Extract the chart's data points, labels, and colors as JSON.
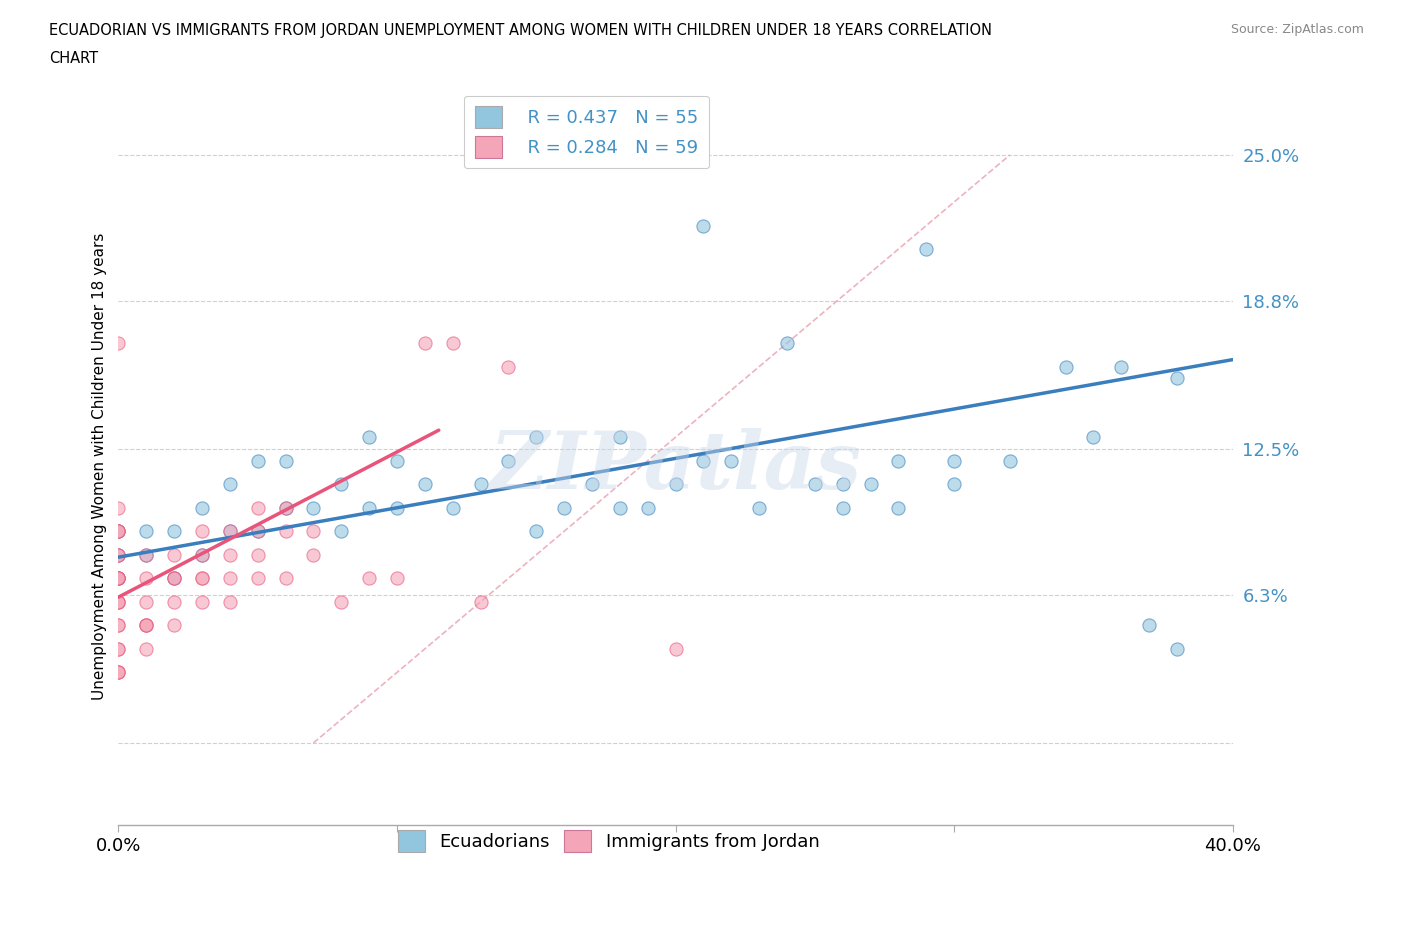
{
  "title_line1": "ECUADORIAN VS IMMIGRANTS FROM JORDAN UNEMPLOYMENT AMONG WOMEN WITH CHILDREN UNDER 18 YEARS CORRELATION",
  "title_line2": "CHART",
  "source": "Source: ZipAtlas.com",
  "ylabel": "Unemployment Among Women with Children Under 18 years",
  "xlim": [
    0.0,
    0.4
  ],
  "ylim": [
    -0.035,
    0.27
  ],
  "yticks": [
    0.0,
    0.063,
    0.125,
    0.188,
    0.25
  ],
  "ytick_labels": [
    "",
    "6.3%",
    "12.5%",
    "18.8%",
    "25.0%"
  ],
  "xticks": [
    0.0,
    0.1,
    0.2,
    0.3,
    0.4
  ],
  "xtick_labels": [
    "0.0%",
    "",
    "",
    "",
    "40.0%"
  ],
  "watermark": "ZIPatlas",
  "legend_r1": "R = 0.437   N = 55",
  "legend_r2": "R = 0.284   N = 59",
  "blue_color": "#92c5de",
  "pink_color": "#f4a6b8",
  "blue_line_color": "#3a7ebe",
  "pink_line_color": "#e8547a",
  "dash_line_color": "#e8a0b0",
  "ecuadorians_x": [
    0.0,
    0.0,
    0.0,
    0.01,
    0.01,
    0.02,
    0.02,
    0.03,
    0.03,
    0.04,
    0.04,
    0.05,
    0.05,
    0.06,
    0.06,
    0.07,
    0.08,
    0.08,
    0.09,
    0.09,
    0.1,
    0.1,
    0.11,
    0.12,
    0.13,
    0.14,
    0.15,
    0.15,
    0.16,
    0.17,
    0.18,
    0.18,
    0.19,
    0.2,
    0.21,
    0.22,
    0.23,
    0.24,
    0.25,
    0.26,
    0.27,
    0.28,
    0.29,
    0.3,
    0.32,
    0.34,
    0.35,
    0.36,
    0.37,
    0.38,
    0.38,
    0.28,
    0.21,
    0.3,
    0.26
  ],
  "ecuadorians_y": [
    0.07,
    0.08,
    0.09,
    0.08,
    0.09,
    0.07,
    0.09,
    0.08,
    0.1,
    0.09,
    0.11,
    0.09,
    0.12,
    0.1,
    0.12,
    0.1,
    0.09,
    0.11,
    0.1,
    0.13,
    0.1,
    0.12,
    0.11,
    0.1,
    0.11,
    0.12,
    0.13,
    0.09,
    0.1,
    0.11,
    0.13,
    0.1,
    0.1,
    0.11,
    0.12,
    0.12,
    0.1,
    0.17,
    0.11,
    0.1,
    0.11,
    0.12,
    0.21,
    0.11,
    0.12,
    0.16,
    0.13,
    0.16,
    0.05,
    0.04,
    0.155,
    0.1,
    0.22,
    0.12,
    0.11
  ],
  "jordan_x": [
    0.0,
    0.0,
    0.0,
    0.0,
    0.0,
    0.0,
    0.0,
    0.0,
    0.0,
    0.0,
    0.0,
    0.0,
    0.0,
    0.0,
    0.0,
    0.0,
    0.0,
    0.0,
    0.0,
    0.0,
    0.0,
    0.01,
    0.01,
    0.01,
    0.01,
    0.01,
    0.01,
    0.01,
    0.02,
    0.02,
    0.02,
    0.02,
    0.02,
    0.03,
    0.03,
    0.03,
    0.03,
    0.03,
    0.04,
    0.04,
    0.04,
    0.04,
    0.05,
    0.05,
    0.05,
    0.05,
    0.06,
    0.06,
    0.06,
    0.07,
    0.07,
    0.08,
    0.09,
    0.1,
    0.11,
    0.12,
    0.13,
    0.14,
    0.2
  ],
  "jordan_y": [
    0.04,
    0.04,
    0.05,
    0.05,
    0.06,
    0.06,
    0.06,
    0.07,
    0.07,
    0.07,
    0.07,
    0.08,
    0.08,
    0.09,
    0.09,
    0.09,
    0.1,
    0.17,
    0.03,
    0.03,
    0.03,
    0.04,
    0.05,
    0.06,
    0.07,
    0.08,
    0.05,
    0.05,
    0.05,
    0.06,
    0.07,
    0.07,
    0.08,
    0.06,
    0.07,
    0.07,
    0.08,
    0.09,
    0.06,
    0.07,
    0.08,
    0.09,
    0.07,
    0.08,
    0.09,
    0.1,
    0.07,
    0.09,
    0.1,
    0.08,
    0.09,
    0.06,
    0.07,
    0.07,
    0.17,
    0.17,
    0.06,
    0.16,
    0.04
  ],
  "blue_trend_x": [
    0.0,
    0.4
  ],
  "blue_trend_y": [
    0.079,
    0.163
  ],
  "pink_trend_x": [
    0.0,
    0.115
  ],
  "pink_trend_y": [
    0.062,
    0.133
  ],
  "dash_line_x": [
    0.07,
    0.32
  ],
  "dash_line_y": [
    0.0,
    0.25
  ]
}
